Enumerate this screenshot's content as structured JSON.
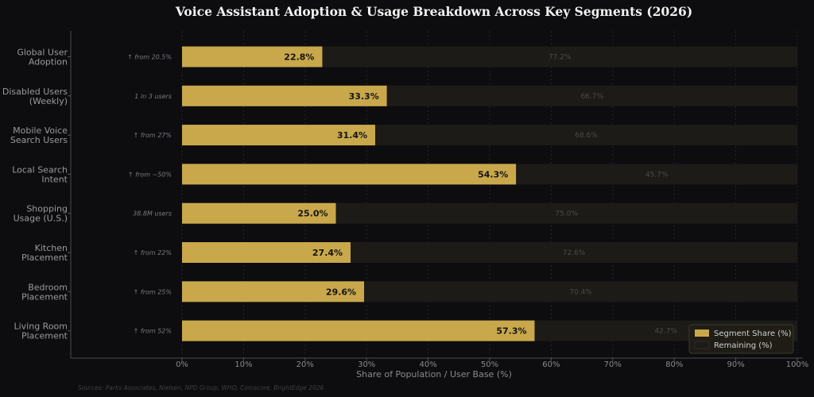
{
  "chart_data": {
    "type": "bar",
    "orientation": "horizontal",
    "stacked": true,
    "title": "Voice Assistant Adoption & Usage Breakdown Across Key Segments (2026)",
    "xlabel": "Share of Population / User Base (%)",
    "ylabel": "",
    "xlim": [
      0,
      100
    ],
    "x_ticks": [
      "0%",
      "10%",
      "20%",
      "30%",
      "40%",
      "50%",
      "60%",
      "70%",
      "80%",
      "90%",
      "100%"
    ],
    "grid": "vertical-dotted",
    "legend_position": "bottom-right",
    "categories": [
      [
        "Global User",
        "Adoption"
      ],
      [
        "Disabled Users",
        "(Weekly)"
      ],
      [
        "Mobile Voice",
        "Search Users"
      ],
      [
        "Local Search",
        "Intent"
      ],
      [
        "Shopping",
        "Usage (U.S.)"
      ],
      [
        "Kitchen",
        "Placement"
      ],
      [
        "Bedroom",
        "Placement"
      ],
      [
        "Living Room",
        "Placement"
      ]
    ],
    "annotations": [
      "↑ from 20.5%",
      "1 in 3 users",
      "↑ from 27%",
      "↑ from ~50%",
      "38.8M users",
      "↑ from 22%",
      "↑ from 25%",
      "↑ from 52%"
    ],
    "series": [
      {
        "name": "Segment Share (%)",
        "color": "#c9a84c",
        "values": [
          22.8,
          33.3,
          31.4,
          54.3,
          25.0,
          27.4,
          29.6,
          57.3
        ],
        "labels": [
          "22.8%",
          "33.3%",
          "31.4%",
          "54.3%",
          "25.0%",
          "27.4%",
          "29.6%",
          "57.3%"
        ]
      },
      {
        "name": "Remaining (%)",
        "color": "#1c1b18",
        "values": [
          77.2,
          66.7,
          68.6,
          45.7,
          75.0,
          72.6,
          70.4,
          42.7
        ],
        "labels": [
          "77.2%",
          "66.7%",
          "68.6%",
          "45.7%",
          "75.0%",
          "72.6%",
          "70.4%",
          "42.7%"
        ]
      }
    ],
    "source": "Sources: Parks Associates, Nielsen, NPD Group, WHO, Comscore, BrightEdge 2026"
  }
}
